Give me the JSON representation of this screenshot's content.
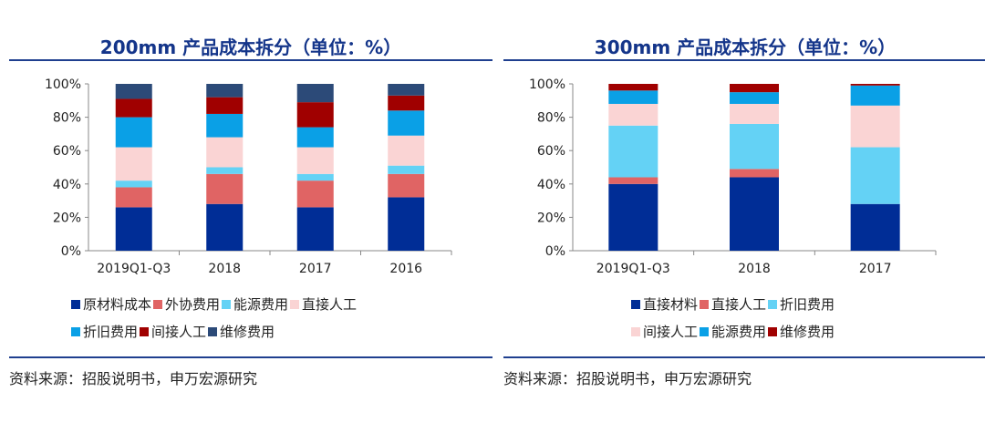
{
  "chart_data": [
    {
      "type": "bar",
      "stacked": true,
      "title": "200mm 产品成本拆分（单位：%）",
      "categories": [
        "2019Q1-Q3",
        "2018",
        "2017",
        "2016"
      ],
      "ylim": [
        0,
        100
      ],
      "yticks": [
        "0%",
        "20%",
        "40%",
        "60%",
        "80%",
        "100%"
      ],
      "grid": false,
      "legend_position": "bottom",
      "series": [
        {
          "name": "原材料成本",
          "color": "#002d96",
          "values": [
            26,
            28,
            26,
            32
          ]
        },
        {
          "name": "外协费用",
          "color": "#e06464",
          "values": [
            12,
            18,
            16,
            14
          ]
        },
        {
          "name": "能源费用",
          "color": "#64d2f5",
          "values": [
            4,
            4,
            4,
            5
          ]
        },
        {
          "name": "直接人工",
          "color": "#fad4d4",
          "values": [
            20,
            18,
            16,
            18
          ]
        },
        {
          "name": "折旧费用",
          "color": "#0aa0e6",
          "values": [
            18,
            14,
            12,
            15
          ]
        },
        {
          "name": "间接人工",
          "color": "#a00000",
          "values": [
            11,
            10,
            15,
            9
          ]
        },
        {
          "name": "维修费用",
          "color": "#2c4a78",
          "values": [
            9,
            8,
            11,
            7
          ]
        }
      ],
      "legend_rows": [
        [
          0,
          1,
          2,
          3
        ],
        [
          4,
          5,
          6
        ]
      ],
      "source": "资料来源：招股说明书，申万宏源研究"
    },
    {
      "type": "bar",
      "stacked": true,
      "title": "300mm 产品成本拆分（单位：%）",
      "categories": [
        "2019Q1-Q3",
        "2018",
        "2017"
      ],
      "ylim": [
        0,
        100
      ],
      "yticks": [
        "0%",
        "20%",
        "40%",
        "60%",
        "80%",
        "100%"
      ],
      "grid": false,
      "legend_position": "bottom",
      "series": [
        {
          "name": "直接材料",
          "color": "#002d96",
          "values": [
            40,
            44,
            28
          ]
        },
        {
          "name": "直接人工",
          "color": "#e06464",
          "values": [
            4,
            5,
            0
          ]
        },
        {
          "name": "折旧费用",
          "color": "#64d2f5",
          "values": [
            31,
            27,
            34
          ]
        },
        {
          "name": "间接人工",
          "color": "#fad4d4",
          "values": [
            13,
            12,
            25
          ]
        },
        {
          "name": "能源费用",
          "color": "#0aa0e6",
          "values": [
            8,
            7,
            12
          ]
        },
        {
          "name": "维修费用",
          "color": "#a00000",
          "values": [
            4,
            5,
            1
          ]
        }
      ],
      "legend_rows": [
        [
          0,
          1,
          2
        ],
        [
          3,
          4,
          5
        ]
      ],
      "source": "资料来源：招股说明书，申万宏源研究"
    }
  ]
}
